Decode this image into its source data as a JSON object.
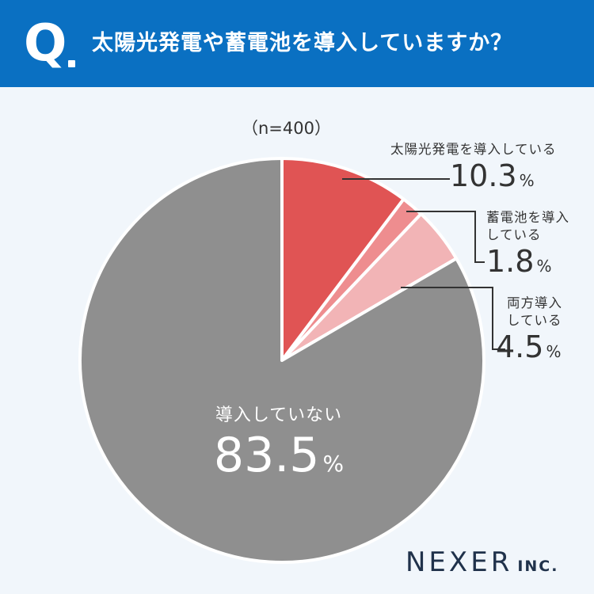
{
  "header": {
    "q_label": "Q",
    "question": "太陽光発電や蓄電池を導入していますか？"
  },
  "sample_label": "（n=400）",
  "chart_data": {
    "type": "pie",
    "title": "太陽光発電や蓄電池を導入していますか？",
    "n": 400,
    "unit": "%",
    "slices": [
      {
        "label": "太陽光発電を導入している",
        "value": 10.3,
        "color": "#e05454"
      },
      {
        "label": "蓄電池を導入している",
        "value": 1.8,
        "color": "#ee8d8f"
      },
      {
        "label": "両方導入している",
        "value": 4.5,
        "color": "#f2b4b6"
      },
      {
        "label": "導入していない",
        "value": 83.5,
        "color": "#8f8f8f"
      }
    ]
  },
  "labels": [
    {
      "name_lines": [
        "太陽光発電を導入している"
      ],
      "value": "10.3",
      "unit": "%"
    },
    {
      "name_lines": [
        "蓄電池を導入",
        "している"
      ],
      "value": "1.8",
      "unit": "%"
    },
    {
      "name_lines": [
        "両方導入",
        "している"
      ],
      "value": "4.5",
      "unit": "%"
    },
    {
      "name_lines": [
        "導入していない"
      ],
      "value": "83.5",
      "unit": "%"
    }
  ],
  "logo": {
    "main": "NEXER",
    "sub": "INC."
  }
}
